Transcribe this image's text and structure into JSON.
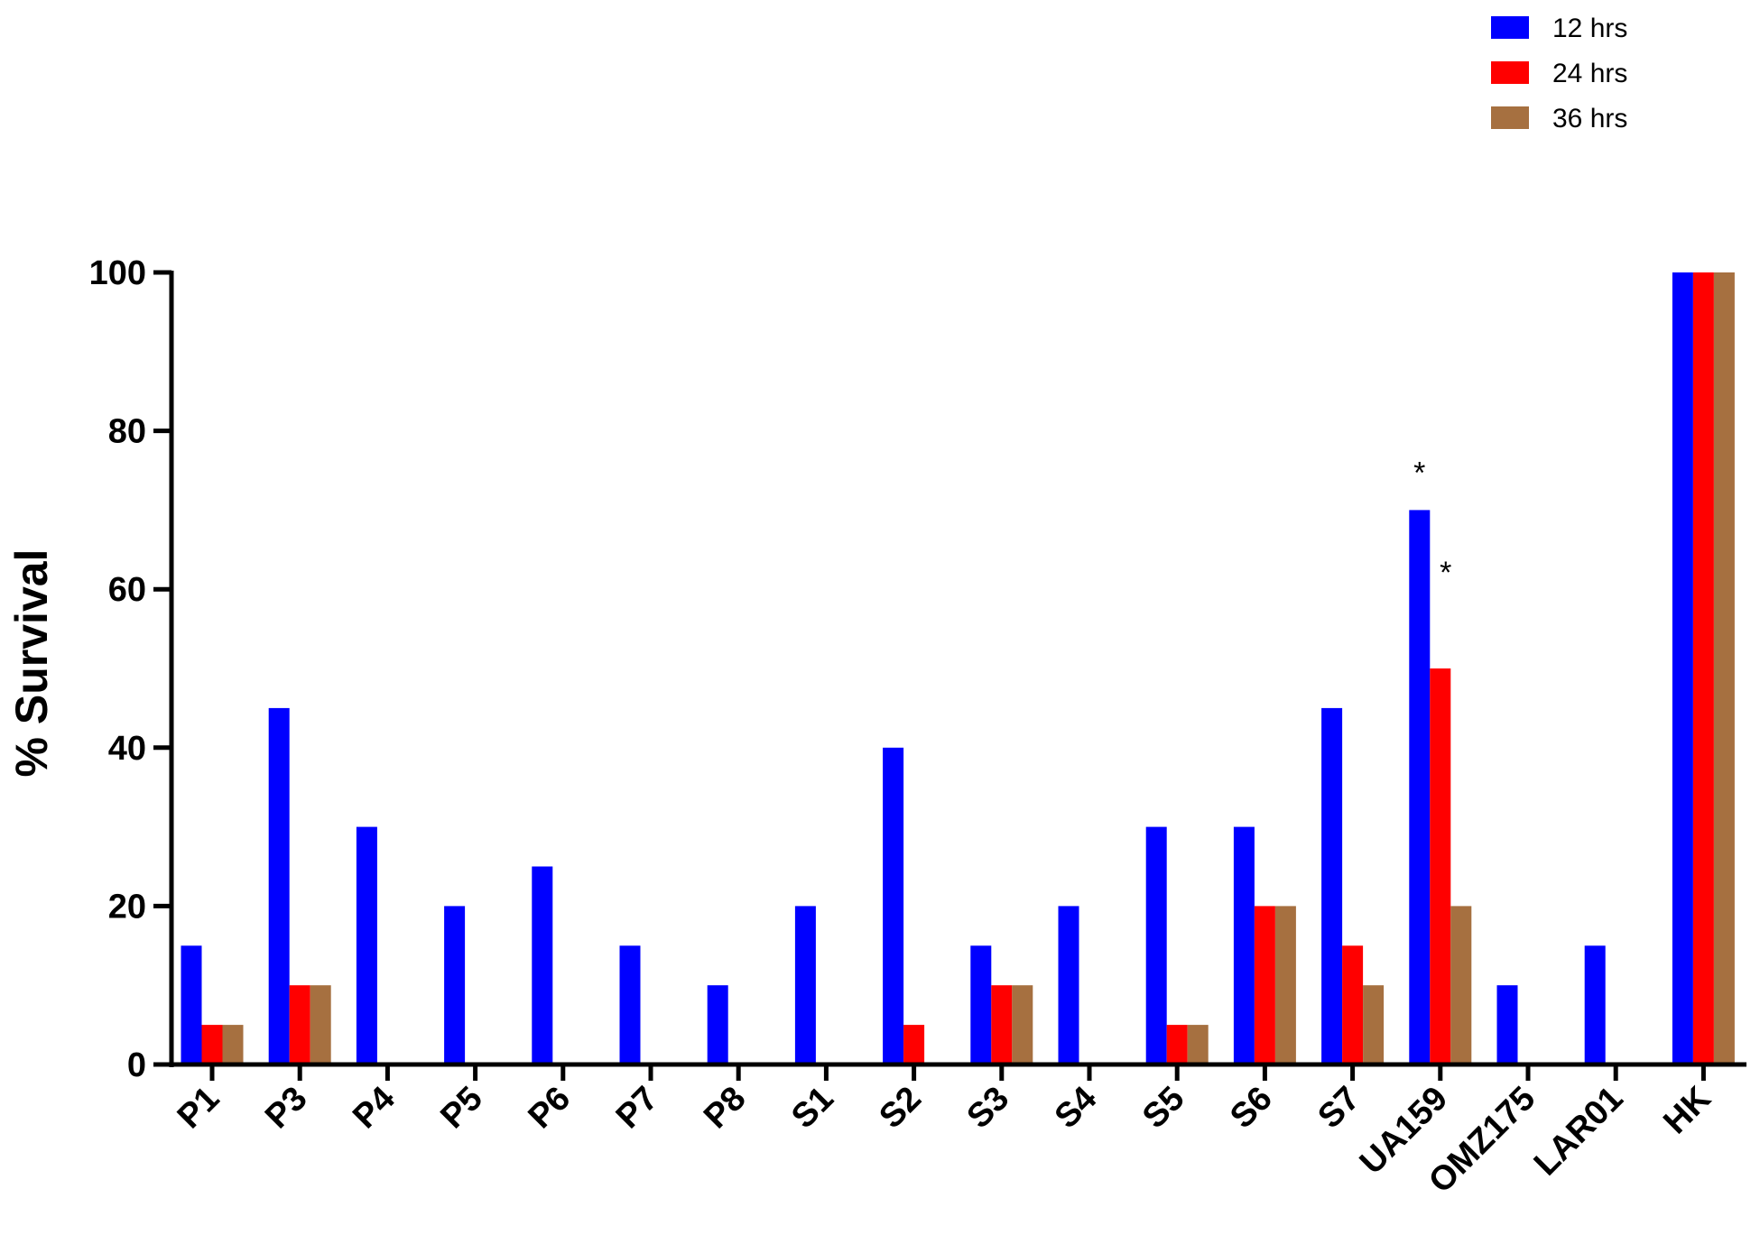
{
  "chart_data": {
    "type": "bar",
    "ylabel": "% Survival",
    "ylim": [
      0,
      100
    ],
    "yticks": [
      0,
      20,
      40,
      60,
      80,
      100
    ],
    "grid": false,
    "legend_position": "top-right",
    "categories": [
      "P1",
      "P3",
      "P4",
      "P5",
      "P6",
      "P7",
      "P8",
      "S1",
      "S2",
      "S3",
      "S4",
      "S5",
      "S6",
      "S7",
      "UA159",
      "OMZ175",
      "LAR01",
      "HK"
    ],
    "series": [
      {
        "name": "12 hrs",
        "color": "#0000ff",
        "values": [
          15,
          45,
          30,
          20,
          25,
          15,
          10,
          20,
          40,
          15,
          20,
          30,
          30,
          45,
          70,
          10,
          15,
          100
        ]
      },
      {
        "name": "24 hrs",
        "color": "#ff0000",
        "values": [
          5,
          10,
          0,
          0,
          0,
          0,
          0,
          0,
          5,
          10,
          0,
          5,
          20,
          15,
          50,
          0,
          0,
          100
        ]
      },
      {
        "name": "36 hrs",
        "color": "#a67040",
        "values": [
          5,
          10,
          0,
          0,
          0,
          0,
          0,
          0,
          0,
          10,
          0,
          5,
          20,
          10,
          20,
          0,
          0,
          100
        ]
      }
    ],
    "annotations": [
      {
        "text": "*",
        "category": "UA159",
        "series": "12 hrs"
      },
      {
        "text": "*",
        "category": "UA159",
        "series": "24 hrs"
      }
    ]
  }
}
